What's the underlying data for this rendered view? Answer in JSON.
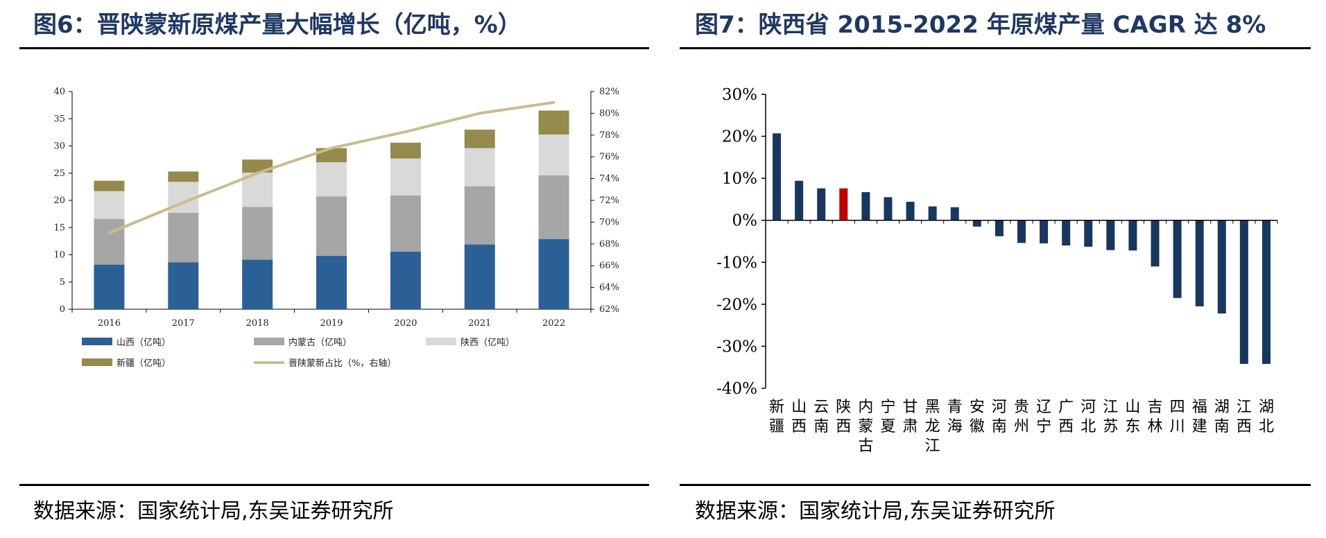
{
  "left": {
    "title": "图6：晋陕蒙新原煤产量大幅增长（亿吨，%）",
    "source": "数据来源：国家统计局,东吴证券研究所",
    "colors": {
      "shanxi": "#2a6096",
      "neimenggu": "#a6a6a6",
      "shaanxi": "#d9d9d9",
      "xinjiang": "#958a4c",
      "share": "#c8bd8f"
    },
    "chart_data": {
      "type": "bar",
      "stacked": true,
      "categories": [
        "2016",
        "2017",
        "2018",
        "2019",
        "2020",
        "2021",
        "2022"
      ],
      "series": [
        {
          "name": "山西（亿吨）",
          "values": [
            8.2,
            8.6,
            9.1,
            9.8,
            10.6,
            11.9,
            12.9
          ]
        },
        {
          "name": "内蒙古（亿吨）",
          "values": [
            8.4,
            9.1,
            9.7,
            10.9,
            10.3,
            10.7,
            11.7
          ]
        },
        {
          "name": "陕西（亿吨）",
          "values": [
            5.1,
            5.7,
            6.3,
            6.3,
            6.8,
            7.0,
            7.5
          ]
        },
        {
          "name": "新疆（亿吨）",
          "values": [
            1.9,
            1.9,
            2.4,
            2.6,
            2.9,
            3.4,
            4.4
          ]
        }
      ],
      "line_series": {
        "name": "晋陕蒙新占比（%，右轴）",
        "axis": "right",
        "values": [
          69.0,
          71.8,
          74.5,
          76.8,
          78.3,
          80.0,
          81.0
        ]
      },
      "ylim": [
        0,
        40
      ],
      "yticks": [
        "0",
        "5",
        "10",
        "15",
        "20",
        "25",
        "30",
        "35",
        "40"
      ],
      "y2lim": [
        62,
        82
      ],
      "y2ticks": [
        "62%",
        "64%",
        "66%",
        "68%",
        "70%",
        "72%",
        "74%",
        "76%",
        "78%",
        "80%",
        "82%"
      ],
      "legend_position": "bottom"
    }
  },
  "right": {
    "title": "图7：陕西省 2015-2022 年原煤产量 CAGR 达 8%",
    "source": "数据来源：国家统计局,东吴证券研究所",
    "colors": {
      "bar": "#17375e",
      "highlight": "#c00000"
    },
    "chart_data": {
      "type": "bar",
      "categories": [
        "新疆",
        "山西",
        "云南",
        "陕西",
        "内蒙古",
        "宁夏",
        "甘肃",
        "黑龙江",
        "青海",
        "安徽",
        "河南",
        "贵州",
        "辽宁",
        "广西",
        "河北",
        "江苏",
        "山东",
        "吉林",
        "四川",
        "福建",
        "湖南",
        "江西",
        "湖北"
      ],
      "values": [
        20.7,
        9.4,
        7.6,
        7.6,
        6.7,
        5.5,
        4.4,
        3.3,
        3.1,
        -1.5,
        -3.8,
        -5.4,
        -5.5,
        -6.0,
        -6.3,
        -7.1,
        -7.2,
        -11.0,
        -18.5,
        -20.5,
        -22.2,
        -34.2,
        -34.2
      ],
      "highlight": "陕西",
      "ylim": [
        -40,
        30
      ],
      "yticks": [
        "-40%",
        "-30%",
        "-20%",
        "-10%",
        "0%",
        "10%",
        "20%",
        "30%"
      ],
      "legend_position": "none"
    }
  }
}
